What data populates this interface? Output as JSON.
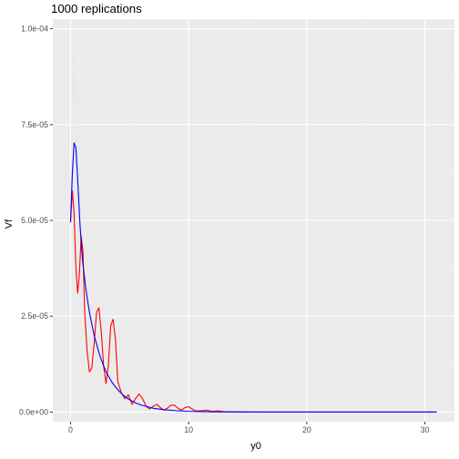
{
  "chart_data": {
    "type": "line",
    "title": "1000 replications",
    "xlabel": "y0",
    "ylabel": "Vf",
    "xlim": [
      -1.5,
      32.5
    ],
    "ylim": [
      -2.5e-06,
      0.0001025
    ],
    "x_ticks": [
      0,
      10,
      20,
      30
    ],
    "x_tick_labels": [
      "0",
      "10",
      "20",
      "30"
    ],
    "y_ticks": [
      0,
      2.5e-05,
      5e-05,
      7.5e-05,
      0.0001
    ],
    "y_tick_labels": [
      "0.0e+00",
      "2.5e-05",
      "5.0e-05",
      "7.5e-05",
      "1.0e-04"
    ],
    "grid": true,
    "panel_background": "#EBEBEB",
    "series": [
      {
        "color": "#E8E8E8",
        "x": [
          0,
          0.1,
          0.2,
          0.25,
          0.3,
          0.35,
          0.4,
          0.45,
          0.5,
          0.6,
          0.7,
          0.8,
          1.0
        ],
        "y": [
          5e-05,
          7e-05,
          9.5e-05,
          9.85e-05,
          9e-05,
          8e-05,
          8.5e-05,
          7.8e-05,
          7e-05,
          6e-05,
          5e-05,
          4.5e-05,
          4e-05
        ]
      },
      {
        "color": "#FF0000",
        "x": [
          0,
          0.15,
          0.3,
          0.45,
          0.6,
          0.75,
          0.9,
          1.05,
          1.2,
          1.4,
          1.6,
          1.8,
          2.0,
          2.2,
          2.4,
          2.6,
          2.8,
          3.0,
          3.2,
          3.4,
          3.6,
          3.8,
          4.0,
          4.3,
          4.6,
          4.9,
          5.2,
          5.5,
          5.8,
          6.1,
          6.4,
          6.7,
          7.0,
          7.3,
          7.6,
          7.9,
          8.2,
          8.5,
          8.8,
          9.1,
          9.4,
          9.7,
          10.0,
          10.3,
          10.6,
          11.0,
          11.5,
          12.0,
          12.5,
          13.0,
          14.0,
          16.0,
          20.0,
          25.0,
          31.0
        ],
        "y": [
          4.95e-05,
          5.78e-05,
          5.2e-05,
          3.8e-05,
          3.1e-05,
          3.6e-05,
          4.6e-05,
          4.2e-05,
          2.6e-05,
          1.6e-05,
          1.05e-05,
          1.15e-05,
          1.8e-05,
          2.6e-05,
          2.72e-05,
          2.1e-05,
          1.2e-05,
          7.5e-06,
          1.2e-05,
          2.25e-05,
          2.42e-05,
          1.9e-05,
          8e-06,
          5e-06,
          3.5e-06,
          4.5e-06,
          2e-06,
          3.5e-06,
          4.7e-06,
          3.5e-06,
          1.5e-06,
          8e-07,
          1.5e-06,
          2e-06,
          1.2e-06,
          5e-07,
          1e-06,
          1.8e-06,
          1.8e-06,
          1e-06,
          5e-07,
          1.2e-06,
          1.4e-06,
          8e-07,
          3e-07,
          3e-07,
          5e-07,
          2e-07,
          3e-07,
          1e-07,
          5e-08,
          0.0,
          0.0,
          0.0,
          0.0
        ]
      },
      {
        "color": "#0000FF",
        "x": [
          0,
          0.15,
          0.3,
          0.45,
          0.6,
          0.8,
          1.0,
          1.3,
          1.6,
          2.0,
          2.5,
          3.0,
          3.5,
          4.0,
          4.5,
          5.0,
          5.5,
          6.0,
          7.0,
          8.0,
          9.0,
          10.0,
          11.0,
          12.0,
          13.0,
          14.0,
          15.0,
          17.0,
          20.0,
          25.0,
          31.0
        ],
        "y": [
          4.95e-05,
          6.2e-05,
          7.02e-05,
          6.9e-05,
          6.1e-05,
          4.9e-05,
          4e-05,
          3.2e-05,
          2.6e-05,
          2e-05,
          1.45e-05,
          1.05e-05,
          7.8e-06,
          5.8e-06,
          4.3e-06,
          3.2e-06,
          2.4e-06,
          1.8e-06,
          1e-06,
          6e-07,
          3.5e-07,
          2e-07,
          1.2e-07,
          8e-08,
          5e-08,
          3e-08,
          2e-08,
          1e-08,
          0.0,
          0.0,
          0.0
        ]
      }
    ]
  }
}
